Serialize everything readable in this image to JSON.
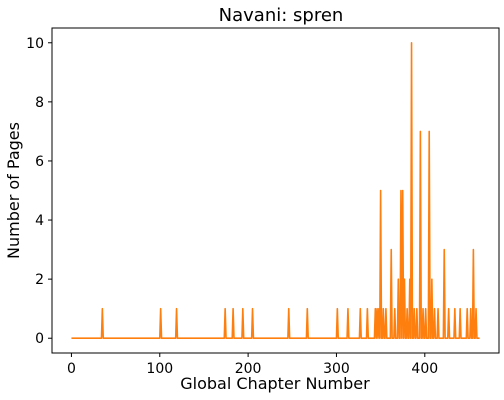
{
  "chart_data": {
    "type": "line",
    "title": "Navani: spren",
    "xlabel": "Global Chapter Number",
    "ylabel": "Number of Pages",
    "xlim": [
      -22,
      484
    ],
    "ylim": [
      -0.5,
      10.5
    ],
    "xticks": [
      0,
      100,
      200,
      300,
      400
    ],
    "yticks": [
      0,
      2,
      4,
      6,
      8,
      10
    ],
    "grid": false,
    "color": "#ff7f0e",
    "x_max": 462,
    "points": [
      [
        35,
        1
      ],
      [
        101,
        1
      ],
      [
        119,
        1
      ],
      [
        174,
        1
      ],
      [
        183,
        1
      ],
      [
        194,
        1
      ],
      [
        205,
        1
      ],
      [
        246,
        1
      ],
      [
        267,
        1
      ],
      [
        301,
        1
      ],
      [
        313,
        1
      ],
      [
        327,
        1
      ],
      [
        335,
        1
      ],
      [
        344,
        1
      ],
      [
        346,
        1
      ],
      [
        348,
        1
      ],
      [
        350,
        5
      ],
      [
        353,
        1
      ],
      [
        356,
        1
      ],
      [
        362,
        3
      ],
      [
        366,
        1
      ],
      [
        370,
        2
      ],
      [
        373,
        5
      ],
      [
        375,
        5
      ],
      [
        377,
        2
      ],
      [
        380,
        1
      ],
      [
        383,
        2
      ],
      [
        385,
        10
      ],
      [
        388,
        1
      ],
      [
        391,
        1
      ],
      [
        395,
        7
      ],
      [
        398,
        1
      ],
      [
        401,
        1
      ],
      [
        405,
        7
      ],
      [
        408,
        2
      ],
      [
        411,
        1
      ],
      [
        415,
        1
      ],
      [
        422,
        3
      ],
      [
        427,
        1
      ],
      [
        434,
        1
      ],
      [
        440,
        1
      ],
      [
        448,
        1
      ],
      [
        452,
        1
      ],
      [
        455,
        3
      ],
      [
        458,
        1
      ]
    ]
  }
}
